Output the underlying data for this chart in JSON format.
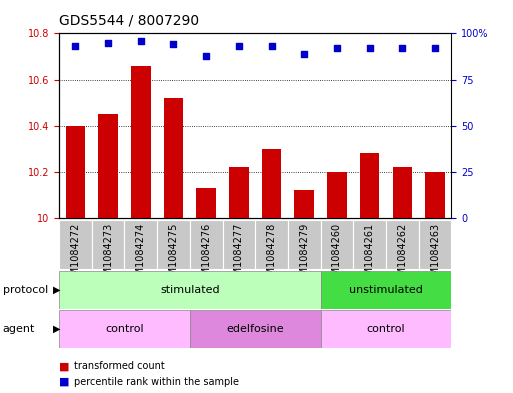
{
  "title": "GDS5544 / 8007290",
  "samples": [
    "GSM1084272",
    "GSM1084273",
    "GSM1084274",
    "GSM1084275",
    "GSM1084276",
    "GSM1084277",
    "GSM1084278",
    "GSM1084279",
    "GSM1084260",
    "GSM1084261",
    "GSM1084262",
    "GSM1084263"
  ],
  "bar_values": [
    10.4,
    10.45,
    10.66,
    10.52,
    10.13,
    10.22,
    10.3,
    10.12,
    10.2,
    10.28,
    10.22,
    10.2
  ],
  "percentile_values": [
    93,
    95,
    96,
    94,
    88,
    93,
    93,
    89,
    92,
    92,
    92,
    92
  ],
  "ylim_left": [
    10,
    10.8
  ],
  "ylim_right": [
    0,
    100
  ],
  "yticks_left": [
    10,
    10.2,
    10.4,
    10.6,
    10.8
  ],
  "yticks_right": [
    0,
    25,
    50,
    75,
    100
  ],
  "bar_color": "#cc0000",
  "dot_color": "#0000cc",
  "grid_color": "#000000",
  "protocol_groups": [
    {
      "label": "stimulated",
      "start": 0,
      "end": 8,
      "color": "#bbffbb"
    },
    {
      "label": "unstimulated",
      "start": 8,
      "end": 12,
      "color": "#44dd44"
    }
  ],
  "agent_groups": [
    {
      "label": "control",
      "start": 0,
      "end": 4,
      "color": "#ffbbff"
    },
    {
      "label": "edelfosine",
      "start": 4,
      "end": 8,
      "color": "#dd88dd"
    },
    {
      "label": "control",
      "start": 8,
      "end": 12,
      "color": "#ffbbff"
    }
  ],
  "bg_color": "#ffffff",
  "plot_bg_color": "#ffffff",
  "xtick_bg_color": "#c8c8c8",
  "bar_width": 0.6,
  "tick_label_fontsize": 7,
  "title_fontsize": 10,
  "label_fontsize": 8,
  "row_fontsize": 8
}
